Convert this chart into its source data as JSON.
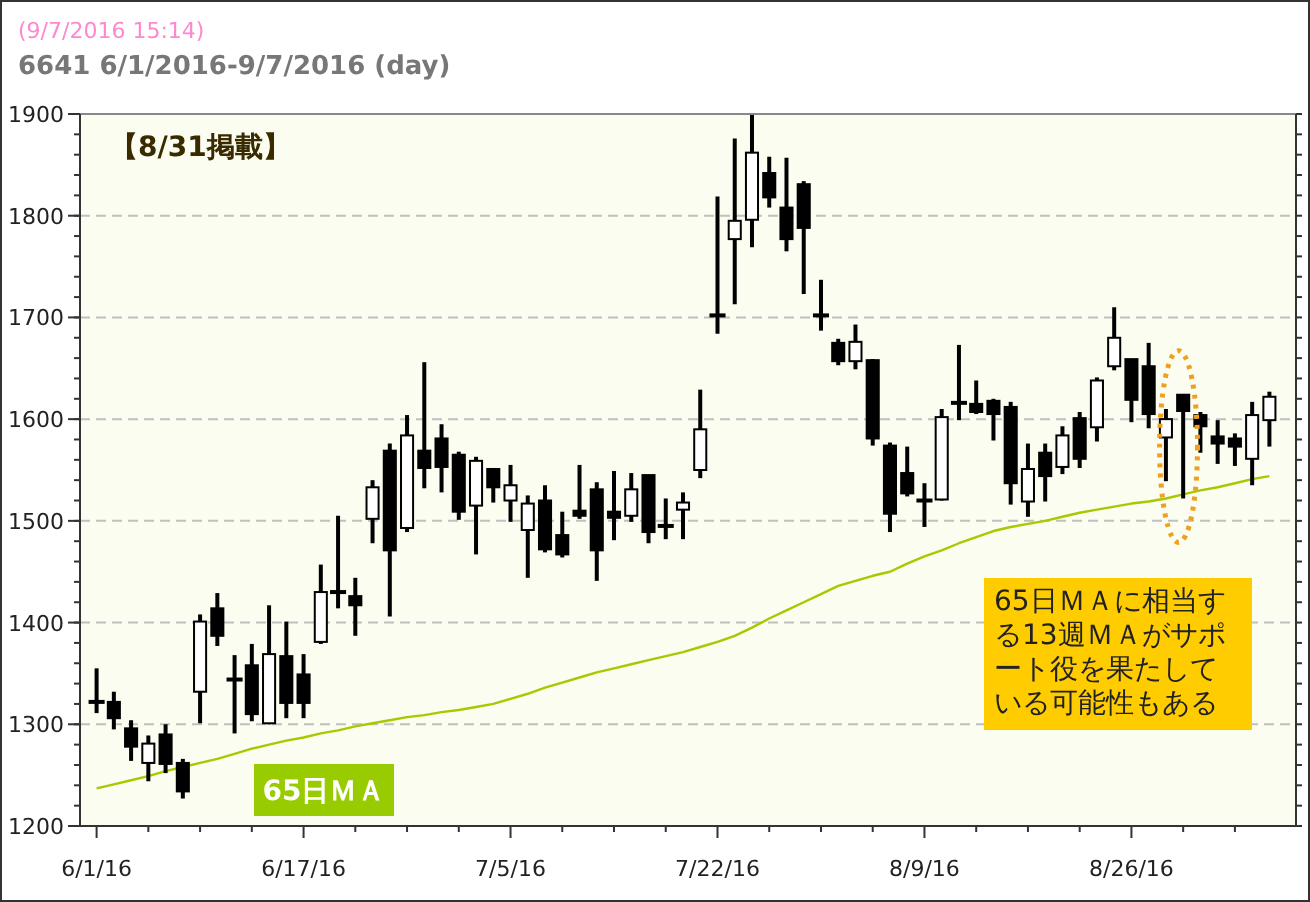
{
  "chart_data": {
    "type": "candlestick",
    "title": "6641 6/1/2016-9/7/2016 (day)",
    "annotations": [
      "(9/7/2016 15:14)",
      "【8/31掲載】",
      "65日ＭＡに相当する13週ＭＡがサポート役を果たしている可能性もある"
    ],
    "categories": [
      "6/1/16",
      null,
      null,
      null,
      null,
      null,
      null,
      null,
      null,
      null,
      null,
      null,
      "6/17/16",
      null,
      null,
      null,
      null,
      null,
      null,
      null,
      null,
      null,
      null,
      null,
      "7/5/16",
      null,
      null,
      null,
      null,
      null,
      null,
      null,
      null,
      null,
      null,
      null,
      "7/22/16",
      null,
      null,
      null,
      null,
      null,
      null,
      null,
      null,
      null,
      null,
      null,
      "8/9/16",
      null,
      null,
      null,
      null,
      null,
      null,
      null,
      null,
      null,
      null,
      null,
      "8/26/16",
      null,
      null,
      null,
      null,
      null,
      null,
      null,
      null
    ],
    "ohlc": [
      [
        1322,
        1355,
        1311,
        1322
      ],
      [
        1322,
        1332,
        1295,
        1306
      ],
      [
        1296,
        1304,
        1264,
        1278
      ],
      [
        1262,
        1289,
        1244,
        1281
      ],
      [
        1290,
        1300,
        1252,
        1261
      ],
      [
        1262,
        1266,
        1227,
        1234
      ],
      [
        1332,
        1408,
        1301,
        1401
      ],
      [
        1414,
        1429,
        1377,
        1387
      ],
      [
        1344,
        1368,
        1291,
        1344
      ],
      [
        1358,
        1379,
        1303,
        1310
      ],
      [
        1301,
        1417,
        1300,
        1369
      ],
      [
        1367,
        1401,
        1306,
        1321
      ],
      [
        1349,
        1369,
        1306,
        1321
      ],
      [
        1381,
        1457,
        1379,
        1430
      ],
      [
        1430,
        1505,
        1414,
        1430
      ],
      [
        1426,
        1444,
        1387,
        1417
      ],
      [
        1502,
        1540,
        1478,
        1533
      ],
      [
        1569,
        1576,
        1406,
        1471
      ],
      [
        1493,
        1604,
        1489,
        1584
      ],
      [
        1569,
        1656,
        1532,
        1552
      ],
      [
        1581,
        1595,
        1528,
        1553
      ],
      [
        1565,
        1568,
        1501,
        1509
      ],
      [
        1515,
        1563,
        1467,
        1559
      ],
      [
        1551,
        1551,
        1518,
        1533
      ],
      [
        1520,
        1555,
        1499,
        1535
      ],
      [
        1491,
        1525,
        1444,
        1517
      ],
      [
        1520,
        1535,
        1469,
        1472
      ],
      [
        1486,
        1509,
        1464,
        1467
      ],
      [
        1510,
        1555,
        1502,
        1505
      ],
      [
        1531,
        1538,
        1441,
        1471
      ],
      [
        1509,
        1549,
        1481,
        1503
      ],
      [
        1505,
        1547,
        1499,
        1531
      ],
      [
        1545,
        1545,
        1478,
        1489
      ],
      [
        1495,
        1522,
        1482,
        1495
      ],
      [
        1511,
        1528,
        1482,
        1518
      ],
      [
        1550,
        1629,
        1542,
        1590
      ],
      [
        1702,
        1819,
        1684,
        1702
      ],
      [
        1777,
        1876,
        1713,
        1795
      ],
      [
        1796,
        1899,
        1769,
        1862
      ],
      [
        1842,
        1858,
        1808,
        1818
      ],
      [
        1808,
        1857,
        1765,
        1777
      ],
      [
        1831,
        1834,
        1723,
        1788
      ],
      [
        1702,
        1737,
        1687,
        1702
      ],
      [
        1675,
        1679,
        1653,
        1657
      ],
      [
        1657,
        1693,
        1649,
        1676
      ],
      [
        1658,
        1659,
        1574,
        1581
      ],
      [
        1574,
        1577,
        1489,
        1507
      ],
      [
        1547,
        1573,
        1524,
        1527
      ],
      [
        1520,
        1537,
        1494,
        1520
      ],
      [
        1521,
        1610,
        1520,
        1602
      ],
      [
        1616,
        1673,
        1599,
        1616
      ],
      [
        1615,
        1638,
        1605,
        1607
      ],
      [
        1618,
        1620,
        1579,
        1605
      ],
      [
        1612,
        1617,
        1516,
        1537
      ],
      [
        1519,
        1576,
        1504,
        1551
      ],
      [
        1567,
        1576,
        1519,
        1544
      ],
      [
        1553,
        1593,
        1546,
        1584
      ],
      [
        1601,
        1607,
        1552,
        1561
      ],
      [
        1592,
        1641,
        1578,
        1638
      ],
      [
        1652,
        1710,
        1648,
        1680
      ],
      [
        1659,
        1659,
        1597,
        1619
      ],
      [
        1652,
        1675,
        1591,
        1605
      ],
      [
        1582,
        1610,
        1539,
        1600
      ],
      [
        1624,
        1624,
        1522,
        1608
      ],
      [
        1604,
        1607,
        1567,
        1593
      ],
      [
        1583,
        1599,
        1556,
        1576
      ],
      [
        1581,
        1586,
        1554,
        1573
      ],
      [
        1561,
        1617,
        1535,
        1604
      ],
      [
        1599,
        1627,
        1573,
        1622
      ]
    ],
    "series": [
      {
        "name": "65日ＭＡ",
        "type": "line",
        "color": "#a8c800",
        "values": [
          1237,
          1241,
          1245,
          1249,
          1254,
          1258,
          1262,
          1266,
          1271,
          1276,
          1280,
          1284,
          1287,
          1291,
          1294,
          1298,
          1301,
          1304,
          1307,
          1309,
          1312,
          1314,
          1317,
          1320,
          1325,
          1330,
          1336,
          1341,
          1346,
          1351,
          1355,
          1359,
          1363,
          1367,
          1371,
          1376,
          1381,
          1387,
          1395,
          1404,
          1412,
          1420,
          1428,
          1436,
          1441,
          1446,
          1450,
          1458,
          1465,
          1471,
          1478,
          1484,
          1490,
          1494,
          1497,
          1500,
          1504,
          1508,
          1511,
          1514,
          1517,
          1519,
          1522,
          1526,
          1530,
          1533,
          1537,
          1541,
          1544
        ]
      }
    ],
    "ylim": [
      1200,
      1900
    ],
    "yticks": [
      1200,
      1300,
      1400,
      1500,
      1600,
      1700,
      1800,
      1900
    ],
    "grid": "y"
  }
}
